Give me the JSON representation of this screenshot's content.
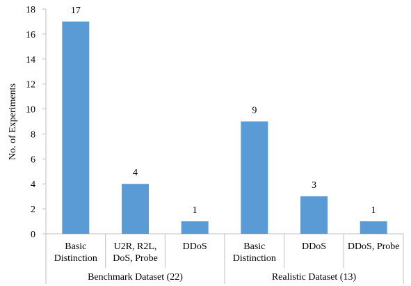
{
  "chart_data": {
    "type": "bar",
    "ylabel": "No. of Experiments",
    "ylim": [
      0,
      18
    ],
    "yticks": [
      0,
      2,
      4,
      6,
      8,
      10,
      12,
      14,
      16,
      18
    ],
    "grid": false,
    "bar_color": "#5b9bd5",
    "groups": [
      {
        "label": "Benchmark Dataset (22)",
        "categories": [
          "Basic\nDistinction",
          "U2R, R2L,\nDoS, Probe",
          "DDoS"
        ],
        "values": [
          17,
          4,
          1
        ]
      },
      {
        "label": "Realistic Dataset (13)",
        "categories": [
          "Basic\nDistinction",
          "DDoS",
          "DDoS, Probe"
        ],
        "values": [
          9,
          3,
          1
        ]
      }
    ]
  }
}
